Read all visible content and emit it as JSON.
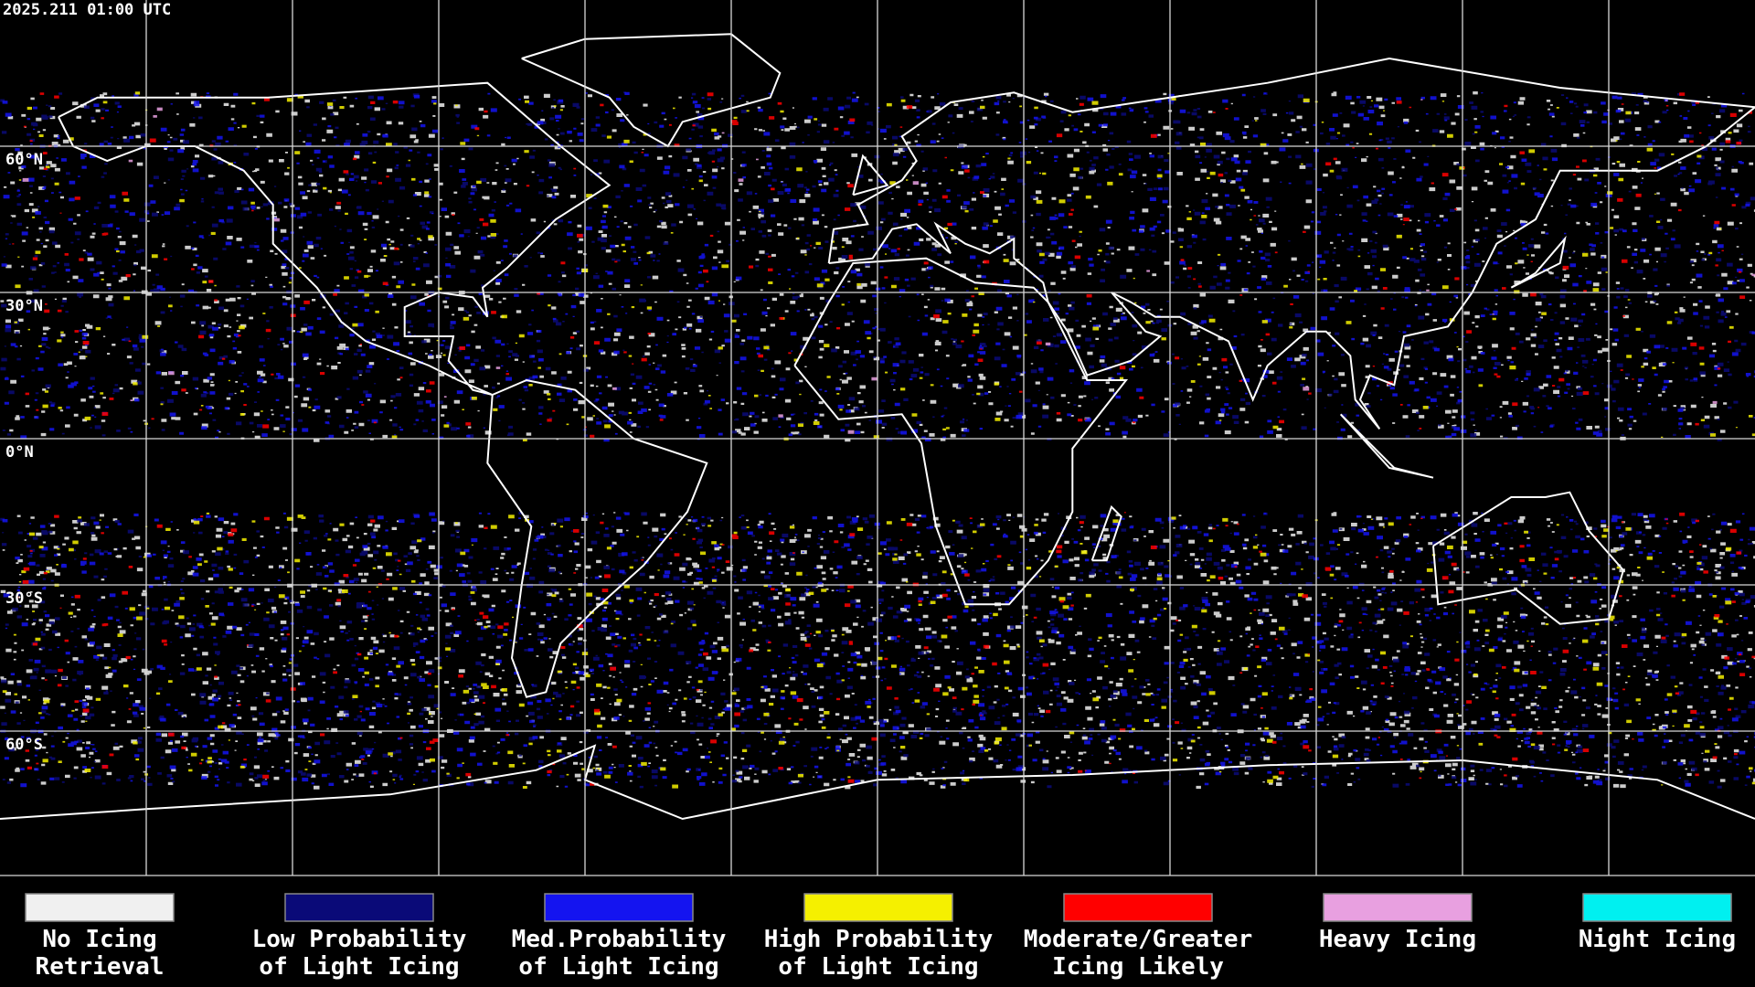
{
  "timestamp": "2025.211 01:00 UTC",
  "latitude_labels": [
    "60°N",
    "30°N",
    "0°N",
    "30°S",
    "60°S"
  ],
  "legend": [
    {
      "color": "#f0f0f0",
      "lines": [
        "No Icing",
        "Retrieval"
      ]
    },
    {
      "color": "#0a0a78",
      "lines": [
        "Low Probability",
        "of Light Icing"
      ]
    },
    {
      "color": "#1414f0",
      "lines": [
        "Med.Probability",
        "of Light Icing"
      ]
    },
    {
      "color": "#f5f000",
      "lines": [
        "High Probability",
        "of Light Icing"
      ]
    },
    {
      "color": "#ff0000",
      "lines": [
        "Moderate/Greater",
        "Icing Likely"
      ]
    },
    {
      "color": "#e8a0e0",
      "lines": [
        "Heavy Icing"
      ]
    },
    {
      "color": "#00f0f0",
      "lines": [
        "Night Icing"
      ]
    }
  ]
}
